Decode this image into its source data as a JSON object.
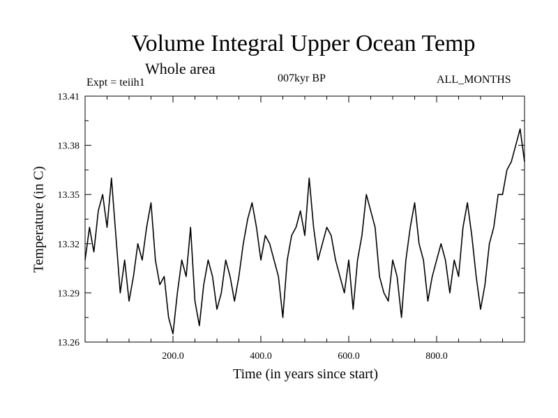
{
  "chart_data": {
    "type": "line",
    "title": "Volume Integral Upper Ocean Temp",
    "subtitle": "Whole area",
    "annotations": {
      "experiment": "Expt = teiih1",
      "period": "007kyr BP",
      "months": "ALL_MONTHS"
    },
    "xlabel": "Time (in years since start)",
    "ylabel": "Temperature (in C)",
    "xlim": [
      0,
      1000
    ],
    "ylim": [
      13.26,
      13.41
    ],
    "x_ticks": [
      "200.0",
      "400.0",
      "600.0",
      "800.0"
    ],
    "y_ticks": [
      "13.41",
      "13.38",
      "13.35",
      "13.32",
      "13.29",
      "13.26"
    ],
    "grid": false,
    "line_color": "#000000",
    "series": [
      {
        "x": [
          0,
          10,
          20,
          30,
          40,
          50,
          60,
          70,
          80,
          90,
          100,
          110,
          120,
          130,
          140,
          150,
          160,
          170,
          180,
          190,
          200,
          210,
          220,
          230,
          240,
          250,
          260,
          270,
          280,
          290,
          300,
          310,
          320,
          330,
          340,
          350,
          360,
          370,
          380,
          390,
          400,
          410,
          420,
          430,
          440,
          450,
          460,
          470,
          480,
          490,
          500,
          510,
          520,
          530,
          540,
          550,
          560,
          570,
          580,
          590,
          600,
          610,
          620,
          630,
          640,
          650,
          660,
          670,
          680,
          690,
          700,
          710,
          720,
          730,
          740,
          750,
          760,
          770,
          780,
          790,
          800,
          810,
          820,
          830,
          840,
          850,
          860,
          870,
          880,
          890,
          900,
          910,
          920,
          930,
          940,
          950,
          960,
          970,
          980,
          990,
          1000
        ],
        "values": [
          13.31,
          13.33,
          13.315,
          13.34,
          13.35,
          13.33,
          13.36,
          13.325,
          13.29,
          13.31,
          13.285,
          13.3,
          13.32,
          13.31,
          13.33,
          13.345,
          13.31,
          13.295,
          13.3,
          13.275,
          13.265,
          13.29,
          13.31,
          13.3,
          13.33,
          13.285,
          13.27,
          13.295,
          13.31,
          13.3,
          13.28,
          13.29,
          13.31,
          13.3,
          13.285,
          13.3,
          13.32,
          13.335,
          13.345,
          13.33,
          13.31,
          13.325,
          13.32,
          13.31,
          13.3,
          13.275,
          13.31,
          13.325,
          13.33,
          13.34,
          13.325,
          13.36,
          13.33,
          13.31,
          13.32,
          13.33,
          13.325,
          13.31,
          13.3,
          13.29,
          13.31,
          13.28,
          13.31,
          13.325,
          13.35,
          13.34,
          13.33,
          13.3,
          13.29,
          13.285,
          13.31,
          13.3,
          13.275,
          13.31,
          13.33,
          13.345,
          13.32,
          13.31,
          13.285,
          13.3,
          13.31,
          13.32,
          13.31,
          13.29,
          13.31,
          13.3,
          13.33,
          13.345,
          13.325,
          13.3,
          13.28,
          13.295,
          13.32,
          13.33,
          13.35,
          13.35,
          13.365,
          13.37,
          13.38,
          13.39,
          13.37
        ]
      }
    ]
  }
}
